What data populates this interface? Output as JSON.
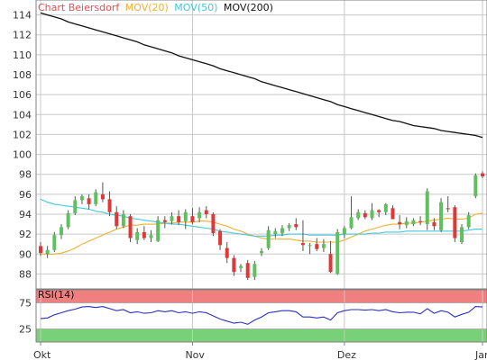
{
  "chart_data": [
    {
      "type": "candlestick",
      "legend": [
        {
          "label": "Chart Beiersdorf",
          "color": "#e05050"
        },
        {
          "label": "MOV(20)",
          "color": "#f0b030"
        },
        {
          "label": "MOV(50)",
          "color": "#40c8e0"
        },
        {
          "label": "MOV(200)",
          "color": "#111111"
        }
      ],
      "ylim": [
        86.5,
        115.5
      ],
      "ytick_labels": [
        "88",
        "90",
        "92",
        "94",
        "96",
        "98",
        "100",
        "102",
        "104",
        "106",
        "108",
        "110",
        "112",
        "114"
      ],
      "xtick_labels": [
        "Okt",
        "Nov",
        "Dez",
        "Jan"
      ],
      "xtick_index": [
        0,
        22,
        44,
        64
      ],
      "grid": true,
      "colors": {
        "up": "#60c060",
        "down": "#e03838",
        "grid": "#c8c8c8",
        "frame": "#808080"
      },
      "candles": [
        [
          90.8,
          91.2,
          89.8,
          90.1
        ],
        [
          90.0,
          90.8,
          89.6,
          90.4
        ],
        [
          90.4,
          92.2,
          90.2,
          91.9
        ],
        [
          91.9,
          93.0,
          91.5,
          92.7
        ],
        [
          92.7,
          94.4,
          92.5,
          94.1
        ],
        [
          94.1,
          95.8,
          93.9,
          95.4
        ],
        [
          95.4,
          96.0,
          95.0,
          95.8
        ],
        [
          95.6,
          96.0,
          94.5,
          95.0
        ],
        [
          95.0,
          96.5,
          94.8,
          96.2
        ],
        [
          96.0,
          97.2,
          95.2,
          95.5
        ],
        [
          95.5,
          96.3,
          93.8,
          94.2
        ],
        [
          94.2,
          94.8,
          92.5,
          92.8
        ],
        [
          92.8,
          94.4,
          92.6,
          94.0
        ],
        [
          93.8,
          94.0,
          91.2,
          91.6
        ],
        [
          91.4,
          92.6,
          91.0,
          92.2
        ],
        [
          92.2,
          92.8,
          91.4,
          91.6
        ],
        [
          91.6,
          92.4,
          91.2,
          91.9
        ],
        [
          91.3,
          93.8,
          91.2,
          93.4
        ],
        [
          93.4,
          93.8,
          92.6,
          93.2
        ],
        [
          93.3,
          94.2,
          93.0,
          93.8
        ],
        [
          93.8,
          94.4,
          92.9,
          93.2
        ],
        [
          93.3,
          94.5,
          92.5,
          94.2
        ],
        [
          93.8,
          94.6,
          93.0,
          93.2
        ],
        [
          93.6,
          94.7,
          93.2,
          94.2
        ],
        [
          94.4,
          94.8,
          93.6,
          94.0
        ],
        [
          94.0,
          94.2,
          91.8,
          92.1
        ],
        [
          92.3,
          92.5,
          90.4,
          90.9
        ],
        [
          90.6,
          91.2,
          89.1,
          89.6
        ],
        [
          89.6,
          89.9,
          87.8,
          88.2
        ],
        [
          88.6,
          89.0,
          88.2,
          88.8
        ],
        [
          89.1,
          89.4,
          87.4,
          87.6
        ],
        [
          87.7,
          89.3,
          87.4,
          89.0
        ],
        [
          90.1,
          90.6,
          89.8,
          90.3
        ],
        [
          90.6,
          92.8,
          90.4,
          92.4
        ],
        [
          92.0,
          92.6,
          91.6,
          92.3
        ],
        [
          92.1,
          92.9,
          91.8,
          92.6
        ],
        [
          92.6,
          93.1,
          92.3,
          92.9
        ],
        [
          93.0,
          93.6,
          92.4,
          92.7
        ],
        [
          91.1,
          93.4,
          90.3,
          90.9
        ],
        [
          90.9,
          91.1,
          90.0,
          90.9
        ],
        [
          91.0,
          91.6,
          90.3,
          90.5
        ],
        [
          90.6,
          91.5,
          90.2,
          91.0
        ],
        [
          90.0,
          91.3,
          88.1,
          88.2
        ],
        [
          88.0,
          92.5,
          87.9,
          92.2
        ],
        [
          92.0,
          92.8,
          91.6,
          92.6
        ],
        [
          92.6,
          95.8,
          92.5,
          93.7
        ],
        [
          93.6,
          94.5,
          93.4,
          94.2
        ],
        [
          94.1,
          94.4,
          93.5,
          93.7
        ],
        [
          93.6,
          95.1,
          93.4,
          94.4
        ],
        [
          94.4,
          94.5,
          93.7,
          94.2
        ],
        [
          94.2,
          95.1,
          93.9,
          95.0
        ],
        [
          94.6,
          94.9,
          93.5,
          93.5
        ],
        [
          93.2,
          93.9,
          92.5,
          93.0
        ],
        [
          92.9,
          93.7,
          92.6,
          93.3
        ],
        [
          93.0,
          93.6,
          92.8,
          93.4
        ],
        [
          93.3,
          93.8,
          92.9,
          93.2
        ],
        [
          93.0,
          96.6,
          92.4,
          96.3
        ],
        [
          93.2,
          93.6,
          92.4,
          92.8
        ],
        [
          92.4,
          95.6,
          92.2,
          95.2
        ],
        [
          94.6,
          95.8,
          94.2,
          94.5
        ],
        [
          94.7,
          94.9,
          91.2,
          91.6
        ],
        [
          91.2,
          93.0,
          91.0,
          92.7
        ],
        [
          92.7,
          94.2,
          92.5,
          93.9
        ],
        [
          95.8,
          98.1,
          95.6,
          97.9
        ],
        [
          98.1,
          98.3,
          97.6,
          97.8
        ]
      ],
      "series": [
        {
          "name": "MOV(20)",
          "color": "#f0b030",
          "values": [
            90.0,
            90.0,
            90.0,
            90.1,
            90.3,
            90.6,
            91.0,
            91.3,
            91.6,
            91.9,
            92.2,
            92.5,
            92.7,
            92.9,
            92.9,
            93.0,
            93.0,
            93.0,
            93.1,
            93.1,
            93.2,
            93.2,
            93.2,
            93.3,
            93.3,
            93.2,
            93.0,
            92.8,
            92.5,
            92.3,
            92.0,
            91.8,
            91.6,
            91.5,
            91.5,
            91.5,
            91.5,
            91.4,
            91.3,
            91.3,
            91.2,
            91.2,
            91.2,
            91.2,
            91.4,
            91.7,
            92.0,
            92.3,
            92.5,
            92.7,
            92.9,
            93.0,
            93.0,
            93.1,
            93.1,
            93.2,
            93.3,
            93.4,
            93.5,
            93.6,
            93.5,
            93.5,
            93.6,
            94.0,
            94.1
          ]
        },
        {
          "name": "MOV(50)",
          "color": "#40c8e0",
          "values": [
            95.5,
            95.2,
            95.0,
            94.9,
            94.8,
            94.7,
            94.6,
            94.5,
            94.3,
            94.2,
            94.0,
            93.9,
            93.8,
            93.6,
            93.5,
            93.4,
            93.3,
            93.2,
            93.1,
            93.0,
            93.0,
            92.9,
            92.8,
            92.7,
            92.6,
            92.5,
            92.3,
            92.2,
            92.1,
            92.0,
            91.9,
            91.8,
            91.8,
            91.8,
            91.9,
            91.9,
            92.0,
            92.0,
            92.0,
            91.9,
            91.9,
            91.9,
            91.9,
            91.9,
            92.0,
            92.0,
            92.0,
            92.0,
            92.1,
            92.1,
            92.2,
            92.2,
            92.2,
            92.3,
            92.3,
            92.3,
            92.3,
            92.3,
            92.3,
            92.3,
            92.3,
            92.3,
            92.4,
            92.5,
            92.5
          ]
        },
        {
          "name": "MOV(200)",
          "color": "#111111",
          "values": [
            114.2,
            114.0,
            113.8,
            113.6,
            113.3,
            113.1,
            112.9,
            112.7,
            112.5,
            112.3,
            112.1,
            111.9,
            111.7,
            111.5,
            111.3,
            111.0,
            110.8,
            110.6,
            110.4,
            110.2,
            109.9,
            109.7,
            109.5,
            109.3,
            109.1,
            108.9,
            108.6,
            108.4,
            108.2,
            108.0,
            107.8,
            107.6,
            107.3,
            107.1,
            106.9,
            106.7,
            106.5,
            106.3,
            106.1,
            105.9,
            105.7,
            105.5,
            105.3,
            105.0,
            104.8,
            104.6,
            104.4,
            104.2,
            104.0,
            103.8,
            103.6,
            103.4,
            103.3,
            103.1,
            102.9,
            102.8,
            102.7,
            102.6,
            102.4,
            102.3,
            102.2,
            102.1,
            102.0,
            101.9,
            101.7
          ]
        }
      ]
    },
    {
      "type": "line",
      "title": "RSI(14)",
      "ylim": [
        0,
        100
      ],
      "ytick_labels": [
        "25",
        "75"
      ],
      "bands": [
        {
          "from": 75,
          "to": 100,
          "color": "#f08080"
        },
        {
          "from": 0,
          "to": 25,
          "color": "#78d078"
        }
      ],
      "series": [
        {
          "name": "RSI(14)",
          "color": "#2a30c0",
          "values": [
            45,
            46,
            52,
            56,
            60,
            63,
            67,
            68,
            66,
            68,
            64,
            60,
            62,
            56,
            58,
            55,
            56,
            60,
            58,
            60,
            56,
            58,
            55,
            58,
            56,
            50,
            44,
            40,
            36,
            38,
            34,
            42,
            48,
            56,
            58,
            60,
            60,
            58,
            48,
            48,
            46,
            48,
            42,
            56,
            60,
            62,
            62,
            61,
            62,
            60,
            62,
            58,
            56,
            57,
            57,
            54,
            64,
            55,
            60,
            57,
            48,
            53,
            57,
            68,
            67
          ]
        }
      ]
    }
  ]
}
